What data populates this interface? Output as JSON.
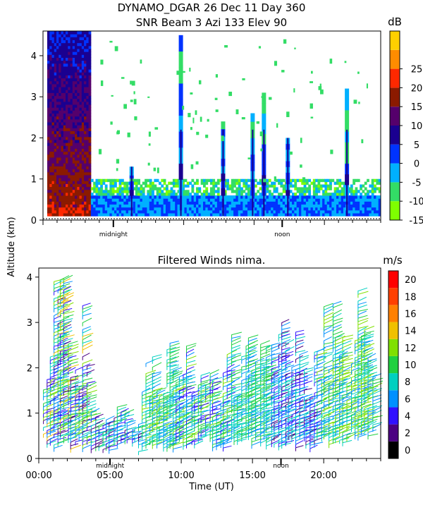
{
  "title_line1": "DYNAMO_DGAR  26 Dec 11 Day 360",
  "title_line2": "SNR Beam 3 Azi 133 Elev 90",
  "shared_ylabel": "Altitude (km)",
  "shared_xlabel": "Time (UT)",
  "chart_data": [
    {
      "type": "heatmap",
      "title": "SNR Beam 3 Azi 133 Elev 90",
      "ylabel": "Altitude (km)",
      "ylim": [
        0,
        4.6
      ],
      "yticks": [
        "0",
        "1",
        "2",
        "3",
        "4"
      ],
      "xlim": [
        0,
        24
      ],
      "x_markers": [
        {
          "label": "midnight",
          "x": 5
        },
        {
          "label": "noon",
          "x": 17
        }
      ],
      "colorbar": {
        "unit": "dB",
        "levels": [
          -15,
          -10,
          -5,
          0,
          5,
          10,
          15,
          20,
          25
        ],
        "labels": [
          "-15",
          "-10",
          "-5",
          "0",
          "5",
          "10",
          "15",
          "20",
          "25"
        ],
        "colors": [
          "#7fff00",
          "#33dd66",
          "#00b0ff",
          "#0033ff",
          "#1a0090",
          "#55006b",
          "#8b1a00",
          "#ff2800",
          "#ff8c00",
          "#ffd000"
        ]
      },
      "regions": [
        {
          "x": [
            0.3,
            3.4
          ],
          "y": [
            0.1,
            4.6
          ],
          "snr": 6
        },
        {
          "x": [
            3.4,
            24
          ],
          "y": [
            0.1,
            0.6
          ],
          "snr": -5
        },
        {
          "x": [
            3.4,
            24
          ],
          "y": [
            0.6,
            1.0
          ],
          "snr": -12
        }
      ],
      "spikes": [
        {
          "x": 6.3,
          "top": 1.3
        },
        {
          "x": 9.8,
          "top": 4.5
        },
        {
          "x": 12.8,
          "top": 2.4
        },
        {
          "x": 14.9,
          "top": 2.6
        },
        {
          "x": 15.7,
          "top": 3.1
        },
        {
          "x": 17.4,
          "top": 2.0
        },
        {
          "x": 21.6,
          "top": 3.2
        }
      ]
    },
    {
      "type": "scatter",
      "title": "Filtered Winds nima.",
      "ylabel": "Altitude (km)",
      "xlabel": "Time (UT)",
      "ylim": [
        0,
        4.2
      ],
      "yticks": [
        "0",
        "1",
        "2",
        "3",
        "4"
      ],
      "xlim": [
        0,
        24
      ],
      "xticks": [
        {
          "label": "00:00",
          "x": 0
        },
        {
          "label": "05:00",
          "x": 5
        },
        {
          "label": "10:00",
          "x": 10
        },
        {
          "label": "15:00",
          "x": 15
        },
        {
          "label": "20:00",
          "x": 20
        }
      ],
      "x_markers": [
        {
          "label": "midnight",
          "x": 5
        },
        {
          "label": "noon",
          "x": 17
        }
      ],
      "colorbar": {
        "unit": "m/s",
        "labels": [
          "0",
          "2",
          "4",
          "6",
          "8",
          "10",
          "12",
          "14",
          "16",
          "18",
          "20"
        ],
        "colors": [
          "#000000",
          "#4b0082",
          "#3010ff",
          "#0090ff",
          "#00d0c0",
          "#20d040",
          "#80e000",
          "#f0c000",
          "#ff8000",
          "#ff4000",
          "#ff0000"
        ]
      },
      "clusters": [
        {
          "x": [
            0.2,
            3.5
          ],
          "y": [
            0.2,
            4.0
          ],
          "speed": [
            3,
            15
          ]
        },
        {
          "x": [
            3.6,
            7.2
          ],
          "y": [
            0.15,
            1.3
          ],
          "speed": [
            3,
            11
          ]
        },
        {
          "x": [
            7.2,
            9.6
          ],
          "y": [
            0.2,
            2.7
          ],
          "speed": [
            7,
            13
          ]
        },
        {
          "x": [
            9.6,
            13.4
          ],
          "y": [
            0.2,
            2.6
          ],
          "speed": [
            4,
            13
          ]
        },
        {
          "x": [
            13.4,
            16.2
          ],
          "y": [
            0.2,
            2.8
          ],
          "speed": [
            7,
            12
          ]
        },
        {
          "x": [
            16.2,
            19.5
          ],
          "y": [
            0.2,
            3.4
          ],
          "speed": [
            3,
            10
          ]
        },
        {
          "x": [
            19.5,
            23.6
          ],
          "y": [
            0.3,
            3.9
          ],
          "speed": [
            6,
            14
          ]
        }
      ]
    }
  ]
}
